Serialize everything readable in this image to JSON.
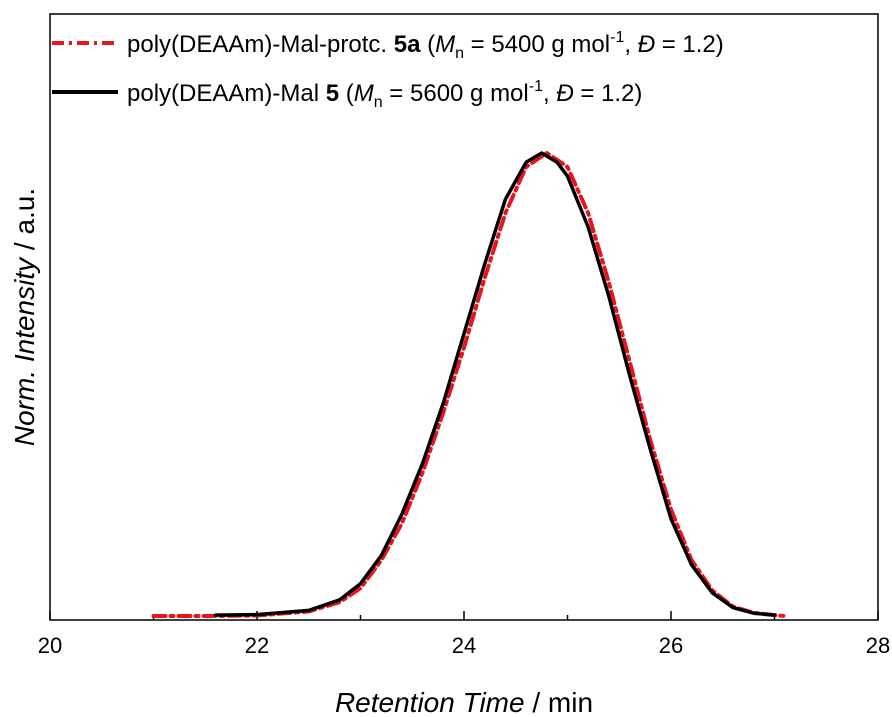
{
  "chart_data": {
    "type": "line",
    "xlabel_main": "Retention Time",
    "xlabel_unit": " / min",
    "ylabel_main": "Norm. Intensity",
    "ylabel_unit": " / a.u.",
    "xlim": [
      20,
      28
    ],
    "ylim": [
      0,
      1.0
    ],
    "x_ticks": [
      "20",
      "22",
      "24",
      "26",
      "28"
    ],
    "grid": false,
    "legend_position": "top",
    "series": [
      {
        "name": "poly(DEAAm)-Mal-protc. 5a (Mn = 5400 g mol-1, Đ = 1.2)",
        "legend_prefix": "poly(DEAAm)-Mal-protc. ",
        "legend_bold": "5a",
        "legend_open": " (",
        "legend_M": "M",
        "legend_sub": "n",
        "legend_mid": " = 5400 g mol",
        "legend_sup": "-1",
        "legend_comma": ", ",
        "legend_D": "Đ",
        "legend_end": " = 1.2)",
        "color": "#e8141e",
        "style": "dash-dot",
        "x": [
          21.0,
          21.5,
          22.0,
          22.5,
          22.8,
          23.0,
          23.2,
          23.4,
          23.6,
          23.8,
          24.0,
          24.2,
          24.4,
          24.6,
          24.8,
          25.0,
          25.2,
          25.4,
          25.6,
          25.8,
          26.0,
          26.2,
          26.4,
          26.6,
          26.8,
          27.0,
          27.1
        ],
        "y": [
          0.0,
          0.0,
          0.001,
          0.01,
          0.03,
          0.06,
          0.12,
          0.2,
          0.31,
          0.44,
          0.58,
          0.73,
          0.87,
          0.97,
          1.0,
          0.97,
          0.87,
          0.72,
          0.55,
          0.38,
          0.23,
          0.12,
          0.055,
          0.02,
          0.007,
          0.002,
          0.0
        ]
      },
      {
        "name": "poly(DEAAm)-Mal 5 (Mn = 5600 g mol-1, Đ = 1.2)",
        "legend_prefix": "poly(DEAAm)-Mal ",
        "legend_bold": "5",
        "legend_open": " (",
        "legend_M": "M",
        "legend_sub": "n",
        "legend_mid": " = 5600 g mol",
        "legend_sup": "-1",
        "legend_comma": ", ",
        "legend_D": "Đ",
        "legend_end": " = 1.2)",
        "color": "#000000",
        "style": "solid",
        "x": [
          21.6,
          22.0,
          22.5,
          22.8,
          23.0,
          23.2,
          23.4,
          23.6,
          23.8,
          24.0,
          24.2,
          24.4,
          24.6,
          24.75,
          24.9,
          25.0,
          25.2,
          25.4,
          25.6,
          25.8,
          26.0,
          26.2,
          26.4,
          26.6,
          26.8,
          27.0
        ],
        "y": [
          0.002,
          0.003,
          0.012,
          0.035,
          0.07,
          0.13,
          0.22,
          0.33,
          0.46,
          0.61,
          0.76,
          0.9,
          0.98,
          1.0,
          0.98,
          0.95,
          0.84,
          0.69,
          0.52,
          0.36,
          0.21,
          0.11,
          0.05,
          0.018,
          0.006,
          0.002
        ]
      }
    ]
  }
}
